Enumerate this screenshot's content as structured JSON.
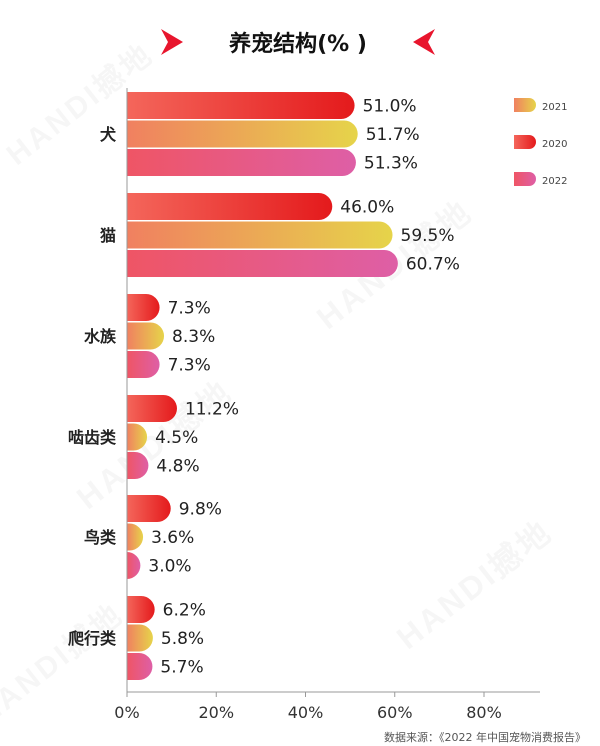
{
  "watermark": "HANDI撼地",
  "source_note": "数据来源：《2022 年中国宠物消费报告》",
  "colors": {
    "2020": [
      "#e41a1c",
      "#f4665b"
    ],
    "2021": [
      "#f08060",
      "#e6d44a"
    ],
    "2022": [
      "#ef5565",
      "#de5fa6"
    ],
    "title_chevron": "#e8152d"
  },
  "chart_data": {
    "type": "bar",
    "orientation": "horizontal",
    "title": "养宠结构(% )",
    "categories": [
      "犬",
      "猫",
      "水族",
      "啮齿类",
      "鸟类",
      "爬行类"
    ],
    "series": [
      {
        "name": "2020",
        "values": [
          51.0,
          46.0,
          7.3,
          11.2,
          9.8,
          6.2
        ]
      },
      {
        "name": "2021",
        "values": [
          51.7,
          59.5,
          8.3,
          4.5,
          3.6,
          5.8
        ]
      },
      {
        "name": "2022",
        "values": [
          51.3,
          60.7,
          7.3,
          4.8,
          3.0,
          5.7
        ]
      }
    ],
    "legend_order": [
      "2021",
      "2020",
      "2022"
    ],
    "legend_position": "top-right",
    "xlim": [
      0,
      80
    ],
    "xticks": [
      0,
      20,
      40,
      60,
      80
    ],
    "xtick_labels": [
      "0%",
      "20%",
      "40%",
      "60%",
      "80%"
    ],
    "value_suffix": "%",
    "grid": false
  }
}
